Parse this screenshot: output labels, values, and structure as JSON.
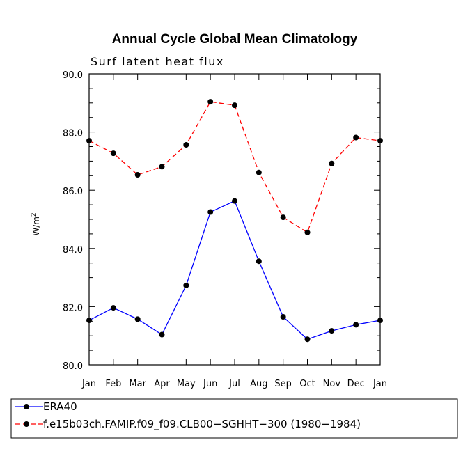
{
  "chart_data": {
    "type": "line",
    "title": "Annual Cycle Global Mean Climatology",
    "subtitle": "Surf latent heat flux",
    "ylabel_main": "W/m",
    "ylabel_sup": "2",
    "xlabel": "",
    "ylim": [
      80.0,
      90.0
    ],
    "yticks": [
      "80.0",
      "82.0",
      "84.0",
      "86.0",
      "88.0",
      "90.0"
    ],
    "ytick_values": [
      80,
      82,
      84,
      86,
      88,
      90
    ],
    "categories": [
      "Jan",
      "Feb",
      "Mar",
      "Apr",
      "May",
      "Jun",
      "Jul",
      "Aug",
      "Sep",
      "Oct",
      "Nov",
      "Dec",
      "Jan"
    ],
    "series": [
      {
        "name": "ERA40",
        "color": "#0000ff",
        "dash": "solid",
        "values": [
          81.53,
          81.96,
          81.57,
          81.04,
          82.73,
          85.25,
          85.63,
          83.56,
          81.65,
          80.88,
          81.17,
          81.38,
          81.53
        ]
      },
      {
        "name": "f.e15b03ch.FAMIP.f09_f09.CLB00−SGHHT−300 (1980−1984)",
        "color": "#ff0000",
        "dash": "dashed",
        "values": [
          87.7,
          87.27,
          86.53,
          86.81,
          87.56,
          89.04,
          88.92,
          86.61,
          85.07,
          84.55,
          86.92,
          87.81,
          87.7
        ]
      }
    ],
    "legend_position": "bottom-left",
    "grid": false
  }
}
